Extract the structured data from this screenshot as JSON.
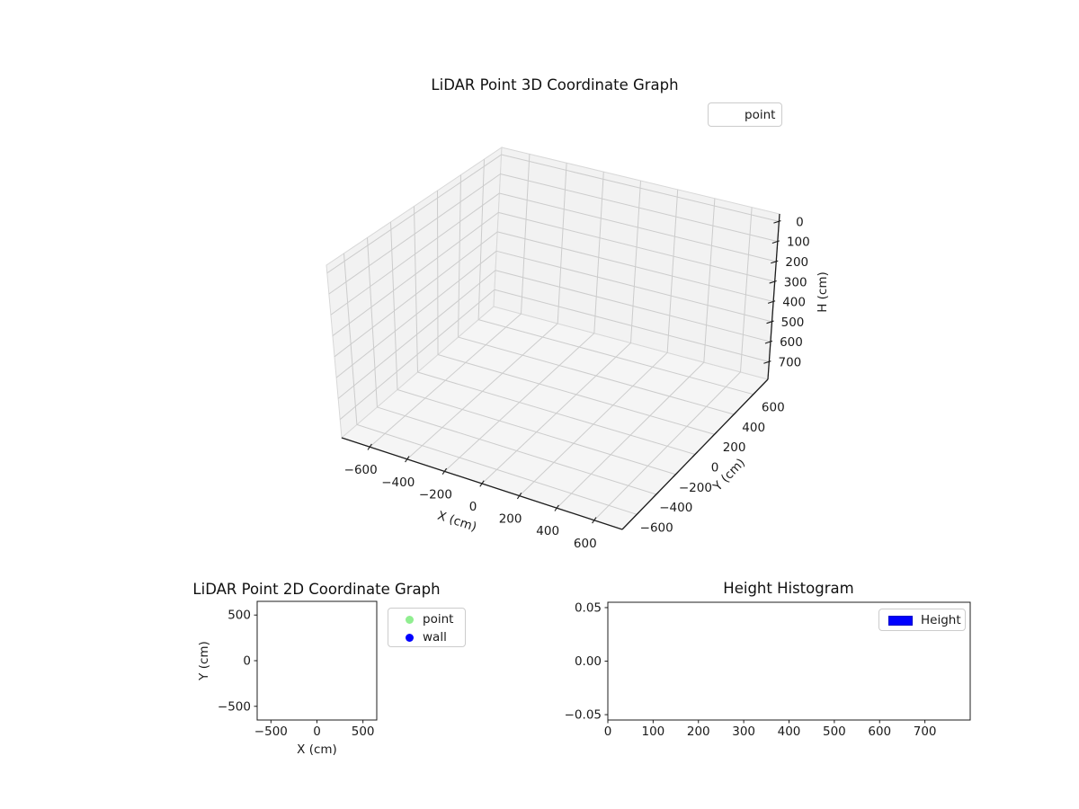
{
  "figure": {
    "background": "#ffffff"
  },
  "colors": {
    "point_green": "#90ee90",
    "wall_blue": "#0000ff",
    "height_blue": "#0000ff",
    "pane_fill": "#f2f2f2",
    "floor_fill": "#f5f5f5",
    "grid_line": "#cccccc",
    "pane_edge": "#d8d8d8",
    "axis_line": "#1c1c1c",
    "text": "#1a1a1a"
  },
  "chart_data": [
    {
      "id": "plot3d",
      "type": "scatter",
      "projection": "3d",
      "title": "LiDAR Point 3D Coordinate Graph",
      "xlabel": "X (cm)",
      "ylabel": "Y (cm)",
      "zlabel": "H (cm)",
      "xlim": [
        -750,
        750
      ],
      "ylim": [
        -750,
        750
      ],
      "zlim": [
        787.5,
        -37.5
      ],
      "xticks": [
        -600,
        -400,
        -200,
        0,
        200,
        400,
        600
      ],
      "yticks": [
        -600,
        -400,
        -200,
        0,
        200,
        400,
        600
      ],
      "zticks": [
        0,
        100,
        200,
        300,
        400,
        500,
        600,
        700
      ],
      "grid": true,
      "legend": {
        "position": "upper-right-outside",
        "items": [
          {
            "label": "point",
            "marker_visible": false
          }
        ]
      },
      "series": [
        {
          "name": "point",
          "points": []
        }
      ]
    },
    {
      "id": "plot2d",
      "type": "scatter",
      "title": "LiDAR Point 2D Coordinate Graph",
      "xlabel": "X (cm)",
      "ylabel": "Y (cm)",
      "xlim": [
        -650,
        650
      ],
      "ylim": [
        -650,
        650
      ],
      "xticks": [
        -500,
        0,
        500
      ],
      "yticks": [
        -500,
        0,
        500
      ],
      "grid": false,
      "legend": {
        "position": "outside-right",
        "items": [
          {
            "label": "point",
            "color": "#90ee90",
            "marker": "circle"
          },
          {
            "label": "wall",
            "color": "#0000ff",
            "marker": "circle"
          }
        ]
      },
      "series": [
        {
          "name": "point",
          "color": "#90ee90",
          "points": []
        },
        {
          "name": "wall",
          "color": "#0000ff",
          "points": []
        }
      ]
    },
    {
      "id": "histogram",
      "type": "bar",
      "title": "Height Histogram",
      "xlabel": "",
      "ylabel": "",
      "xlim": [
        0,
        800
      ],
      "ylim": [
        -0.055,
        0.055
      ],
      "xticks": [
        0,
        100,
        200,
        300,
        400,
        500,
        600,
        700
      ],
      "yticks": [
        -0.05,
        0.0,
        0.05
      ],
      "ytick_decimals": 2,
      "grid": false,
      "legend": {
        "position": "upper-right-inside",
        "items": [
          {
            "label": "Height",
            "color": "#0000ff",
            "marker": "rect"
          }
        ]
      },
      "series": [
        {
          "name": "Height",
          "color": "#0000ff",
          "values": []
        }
      ]
    }
  ]
}
